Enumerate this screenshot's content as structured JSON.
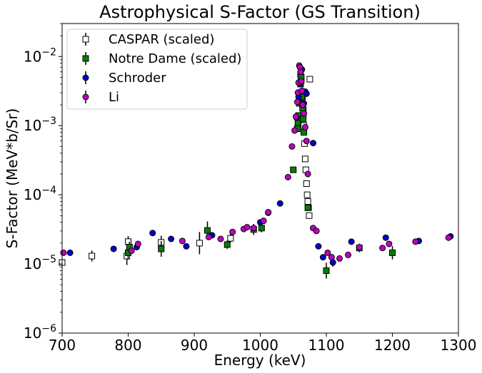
{
  "chart_data": {
    "type": "scatter",
    "title": "Astrophysical S-Factor (GS Transition)",
    "xlabel": "Energy (keV)",
    "ylabel": "S-Factor (MeV*b/Sr)",
    "xlim": [
      700,
      1300
    ],
    "ylim": [
      1e-06,
      0.03
    ],
    "yscale": "log",
    "grid": false,
    "legend_position": "top-left",
    "x_ticks": [
      700,
      800,
      900,
      1000,
      1100,
      1200,
      1300
    ],
    "x_tick_labels": [
      "700",
      "800",
      "900",
      "1000",
      "1100",
      "1200",
      "1300"
    ],
    "y_ticks": [
      1e-06,
      1e-05,
      0.0001,
      0.001,
      0.01
    ],
    "y_tick_labels": [
      {
        "base": "10",
        "exp": "−6"
      },
      {
        "base": "10",
        "exp": "−5"
      },
      {
        "base": "10",
        "exp": "−4"
      },
      {
        "base": "10",
        "exp": "−3"
      },
      {
        "base": "10",
        "exp": "−2"
      }
    ],
    "series": [
      {
        "name": "CASPAR (scaled)",
        "marker": "square",
        "color": "#ffffff",
        "edge": "#000000",
        "x": [
          700,
          745,
          798,
          800,
          850,
          908,
          955,
          1061,
          1062,
          1064,
          1065,
          1066,
          1067,
          1068,
          1069,
          1070,
          1071,
          1072,
          1073,
          1074,
          1075
        ],
        "y": [
          1.05e-05,
          1.3e-05,
          1.3e-05,
          2.1e-05,
          2.05e-05,
          2e-05,
          2.35e-05,
          0.0055,
          0.0045,
          0.0026,
          0.0017,
          0.001,
          0.00055,
          0.00033,
          0.00023,
          0.000145,
          0.0001,
          8e-05,
          6.5e-05,
          5e-05,
          0.0047
        ],
        "yerr_factor": [
          1.0,
          1.2,
          1.35,
          1.2,
          1.25,
          1.45,
          1.15,
          1.05,
          1.05,
          1.05,
          1.05,
          1.05,
          1.05,
          1.05,
          1.05,
          1.05,
          1.05,
          1.05,
          1.05,
          1.1,
          1.05
        ]
      },
      {
        "name": "Notre Dame (scaled)",
        "marker": "square",
        "color": "#007f00",
        "edge": "#000000",
        "x": [
          800,
          802,
          850,
          920,
          950,
          990,
          1002,
          1050,
          1056,
          1057,
          1058,
          1059,
          1060,
          1061,
          1062,
          1063,
          1064,
          1065,
          1066,
          1072,
          1100,
          1150,
          1200
        ],
        "y": [
          1.45e-05,
          1.75e-05,
          1.65e-05,
          3.05e-05,
          1.9e-05,
          3.15e-05,
          3.3e-05,
          0.00023,
          0.0009,
          0.0011,
          0.0014,
          0.0021,
          0.003,
          0.004,
          0.005,
          0.0026,
          0.0018,
          0.00125,
          0.0008,
          6.5e-05,
          8e-06,
          1.7e-05,
          1.45e-05
        ],
        "yerr_factor": [
          1.25,
          1.2,
          1.3,
          1.35,
          1.15,
          1.2,
          1.15,
          1.05,
          1.05,
          1.05,
          1.05,
          1.05,
          1.05,
          1.05,
          1.05,
          1.05,
          1.05,
          1.05,
          1.05,
          1.1,
          1.3,
          1.15,
          1.25
        ]
      },
      {
        "name": "Schroder",
        "marker": "circle",
        "color": "#0000cc",
        "edge": "#000000",
        "x": [
          712,
          778,
          813,
          837,
          865,
          888,
          927,
          1000,
          1012,
          1030,
          1055,
          1058,
          1060,
          1063,
          1066,
          1068,
          1070,
          1080,
          1088,
          1095,
          1110,
          1138,
          1190,
          1240,
          1288
        ],
        "y": [
          1.45e-05,
          1.65e-05,
          1.75e-05,
          2.8e-05,
          2.3e-05,
          1.8e-05,
          2.6e-05,
          4e-05,
          5.5e-05,
          7.5e-05,
          0.0013,
          0.0026,
          0.004,
          0.0065,
          0.0021,
          0.0031,
          0.0029,
          0.00056,
          1.8e-05,
          1.25e-05,
          1.05e-05,
          2.1e-05,
          2.4e-05,
          2.15e-05,
          2.5e-05
        ],
        "yerr_factor": [
          1.05,
          1.05,
          1.05,
          1.05,
          1.05,
          1.1,
          1.05,
          1.05,
          1.05,
          1.05,
          1.05,
          1.05,
          1.05,
          1.05,
          1.05,
          1.05,
          1.05,
          1.05,
          1.05,
          1.1,
          1.15,
          1.05,
          1.05,
          1.05,
          1.05
        ]
      },
      {
        "name": "Li",
        "marker": "circle",
        "color": "#bf00bf",
        "edge": "#000000",
        "x": [
          702,
          805,
          815,
          882,
          922,
          940,
          958,
          975,
          980,
          990,
          1005,
          1012,
          1042,
          1048,
          1052,
          1054,
          1056,
          1057,
          1058,
          1059,
          1060,
          1061,
          1062,
          1063,
          1064,
          1066,
          1068,
          1070,
          1072,
          1080,
          1085,
          1102,
          1108,
          1120,
          1133,
          1150,
          1185,
          1195,
          1235,
          1285
        ],
        "y": [
          1.45e-05,
          1.55e-05,
          1.95e-05,
          2.15e-05,
          2.45e-05,
          2.3e-05,
          2.9e-05,
          3.2e-05,
          3.4e-05,
          3.3e-05,
          4.2e-05,
          5.6e-05,
          0.00018,
          0.0005,
          0.00085,
          0.00135,
          0.0022,
          0.003,
          0.0042,
          0.0074,
          0.007,
          0.006,
          0.0044,
          0.0032,
          0.002,
          0.0015,
          0.00095,
          0.0006,
          0.0002,
          3.3e-05,
          3e-05,
          1.45e-05,
          1.25e-05,
          1.2e-05,
          1.35e-05,
          1.75e-05,
          1.7e-05,
          1.95e-05,
          2.1e-05,
          2.4e-05
        ],
        "yerr_factor": [
          1.05,
          1.05,
          1.05,
          1.05,
          1.05,
          1.05,
          1.05,
          1.05,
          1.05,
          1.05,
          1.05,
          1.05,
          1.05,
          1.05,
          1.05,
          1.05,
          1.05,
          1.05,
          1.05,
          1.05,
          1.05,
          1.05,
          1.05,
          1.05,
          1.05,
          1.05,
          1.05,
          1.05,
          1.05,
          1.05,
          1.05,
          1.05,
          1.05,
          1.05,
          1.05,
          1.05,
          1.05,
          1.05,
          1.05,
          1.05
        ]
      }
    ]
  }
}
